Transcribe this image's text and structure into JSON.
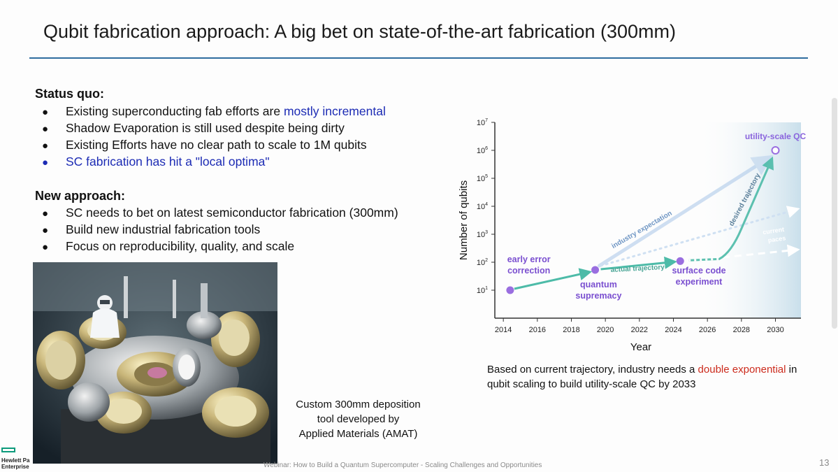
{
  "slide": {
    "title": "Qubit fabrication approach: A big bet on state-of-the-art fabrication (300mm)",
    "status_quo": {
      "heading": "Status quo:",
      "items": [
        {
          "pre": "Existing superconducting fab efforts are ",
          "hl": "mostly incremental"
        },
        {
          "pre": "Shadow Evaporation is still used despite being dirty",
          "hl": ""
        },
        {
          "pre": "Existing Efforts have no clear path to scale to 1M qubits",
          "hl": ""
        },
        {
          "pre": "",
          "hl": "SC fabrication has hit a \"local optima\""
        }
      ]
    },
    "new_approach": {
      "heading": "New approach:",
      "items": [
        "SC needs to bet on latest semiconductor fabrication (300mm)",
        "Build new industrial fabrication tools",
        "Focus on reproducibility, quality, and scale"
      ]
    },
    "bullet_char": "●",
    "photo_caption": [
      "Custom 300mm deposition",
      "tool developed by",
      "Applied Materials (AMAT)"
    ],
    "chart_note": {
      "pre": "Based on current trajectory, industry needs a ",
      "red": "double exponential",
      "post": " in qubit scaling to build utility-scale QC by 2033"
    },
    "footer_text": "Webinar: How to Build a Quantum Supercomputer - Scaling Challenges and Opportunities",
    "page_number": "13",
    "logo": {
      "line1": "Hewlett Pa",
      "line2": "Enterprise"
    }
  },
  "colors": {
    "title_rule": "#2f6d9f",
    "highlight": "#1c2bb4",
    "emphasis_red": "#cc2b1d",
    "point_purple": "#9a6ee0",
    "label_purple": "#7a4fd0",
    "teal_arrow": "#4dbba8",
    "blue_arrow": "#a8c6e8",
    "shade": "#cde3ee"
  },
  "chart_data": {
    "type": "scatter",
    "xlabel": "Year",
    "ylabel": "Number of qubits",
    "xlim": [
      2013.5,
      2031.5
    ],
    "ylim": [
      0,
      7
    ],
    "y_scale": "log",
    "x_ticks": [
      2014,
      2016,
      2018,
      2020,
      2022,
      2024,
      2026,
      2028,
      2030
    ],
    "y_ticks": [
      {
        "exp": 1,
        "base": "10",
        "sup": "1"
      },
      {
        "exp": 2,
        "base": "10",
        "sup": "2"
      },
      {
        "exp": 3,
        "base": "10",
        "sup": "3"
      },
      {
        "exp": 4,
        "base": "10",
        "sup": "4"
      },
      {
        "exp": 5,
        "base": "10",
        "sup": "5"
      },
      {
        "exp": 6,
        "base": "10",
        "sup": "6"
      },
      {
        "exp": 7,
        "base": "10",
        "sup": "7"
      }
    ],
    "points": [
      {
        "name": "early-error-correction",
        "x": 2014.4,
        "y": 10,
        "label": [
          "early error",
          "correction"
        ]
      },
      {
        "name": "quantum-supremacy",
        "x": 2019.4,
        "y": 53,
        "label": [
          "quantum",
          "supremacy"
        ]
      },
      {
        "name": "surface-code-experiment",
        "x": 2024.4,
        "y": 110,
        "label": [
          "surface code",
          "experiment"
        ]
      },
      {
        "name": "utility-scale-qc",
        "x": 2030,
        "y": 1000000,
        "label": [
          "utility-scale QC"
        ]
      }
    ],
    "annotations": [
      {
        "name": "industry-expectation",
        "text": "industry expectation"
      },
      {
        "name": "actual-trajectory",
        "text": "actual trajectory"
      },
      {
        "name": "desired-trajectory",
        "text": "desired trajectory"
      },
      {
        "name": "current-paces",
        "text": [
          "current",
          "paces"
        ]
      }
    ]
  }
}
